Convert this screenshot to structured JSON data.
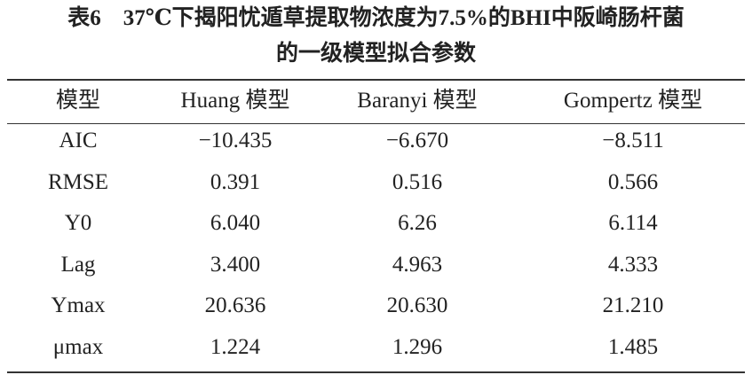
{
  "header": {
    "title_lines": [
      "表6　37℃下揭阳忧遁草提取物浓度为7.5%的BHI中阪崎肠杆菌",
      "的一级模型拟合参数"
    ]
  },
  "table": {
    "columns": [
      "模型",
      "Huang 模型",
      "Baranyi 模型",
      "Gompertz 模型"
    ],
    "rows": [
      [
        "AIC",
        "−10.435",
        "−6.670",
        "−8.511"
      ],
      [
        "RMSE",
        "0.391",
        "0.516",
        "0.566"
      ],
      [
        "Y0",
        "6.040",
        "6.26",
        "6.114"
      ],
      [
        "Lag",
        "3.400",
        "4.963",
        "4.333"
      ],
      [
        "Ymax",
        "20.636",
        "20.630",
        "21.210"
      ],
      [
        "μmax",
        "1.224",
        "1.296",
        "1.485"
      ]
    ]
  }
}
